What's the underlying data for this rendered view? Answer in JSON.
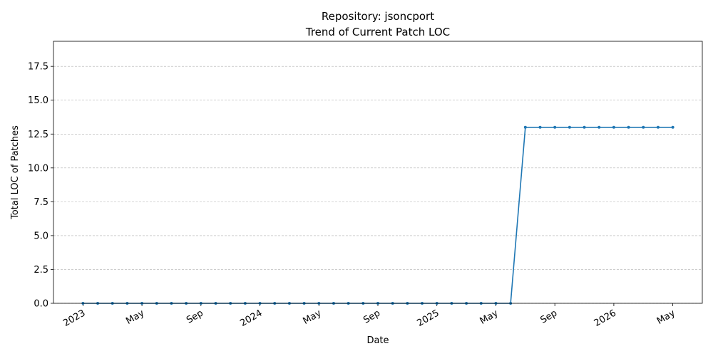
{
  "chart_data": {
    "type": "line",
    "title": "Repository: jsoncport",
    "subtitle": "Trend of Current Patch LOC",
    "x_label": "Date",
    "y_label": "Total LOC of Patches",
    "x": [
      "2023-01",
      "2023-02",
      "2023-03",
      "2023-04",
      "2023-05",
      "2023-06",
      "2023-07",
      "2023-08",
      "2023-09",
      "2023-10",
      "2023-11",
      "2023-12",
      "2024-01",
      "2024-02",
      "2024-03",
      "2024-04",
      "2024-05",
      "2024-06",
      "2024-07",
      "2024-08",
      "2024-09",
      "2024-10",
      "2024-11",
      "2024-12",
      "2025-01",
      "2025-02",
      "2025-03",
      "2025-04",
      "2025-05",
      "2025-06",
      "2025-07",
      "2025-08",
      "2025-09",
      "2025-10",
      "2025-11",
      "2025-12",
      "2026-01",
      "2026-02",
      "2026-03",
      "2026-04",
      "2026-05"
    ],
    "series": [
      {
        "name": "Total LOC of Patches",
        "color": "#1f77b4",
        "values": [
          0,
          0,
          0,
          0,
          0,
          0,
          0,
          0,
          0,
          0,
          0,
          0,
          0,
          0,
          0,
          0,
          0,
          0,
          0,
          0,
          0,
          0,
          0,
          0,
          0,
          0,
          0,
          0,
          0,
          0,
          13,
          13,
          13,
          13,
          13,
          13,
          13,
          13,
          13,
          13,
          13
        ]
      }
    ],
    "xlim": [
      "2022-11",
      "2026-07"
    ],
    "xticks": [
      {
        "value": "2023-01",
        "label": "2023"
      },
      {
        "value": "2023-05",
        "label": "May"
      },
      {
        "value": "2023-09",
        "label": "Sep"
      },
      {
        "value": "2024-01",
        "label": "2024"
      },
      {
        "value": "2024-05",
        "label": "May"
      },
      {
        "value": "2024-09",
        "label": "Sep"
      },
      {
        "value": "2025-01",
        "label": "2025"
      },
      {
        "value": "2025-05",
        "label": "May"
      },
      {
        "value": "2025-09",
        "label": "Sep"
      },
      {
        "value": "2026-01",
        "label": "2026"
      },
      {
        "value": "2026-05",
        "label": "May"
      }
    ],
    "ylim": [
      0,
      19.35
    ],
    "yticks": [
      {
        "value": 0,
        "label": "0.0"
      },
      2.5,
      {
        "value": 5,
        "label": "5.0"
      },
      7.5,
      {
        "value": 10,
        "label": "10.0"
      },
      12.5,
      {
        "value": 15,
        "label": "15.0"
      },
      17.5
    ],
    "grid": true
  }
}
